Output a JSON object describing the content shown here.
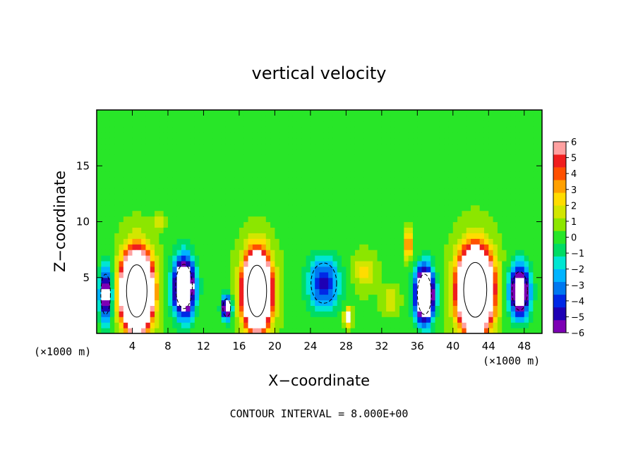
{
  "chart_data": {
    "type": "heatmap",
    "title": "vertical velocity",
    "xlabel": "X−coordinate",
    "ylabel": "Z−coordinate",
    "x_unit_left": "(×1000 m)",
    "x_unit_right": "(×1000 m)",
    "footer": "CONTOUR INTERVAL = 8.000E+00",
    "xlim": [
      0,
      50
    ],
    "ylim": [
      0,
      20
    ],
    "x_ticks": [
      4,
      8,
      12,
      16,
      20,
      24,
      28,
      32,
      36,
      40,
      44,
      48
    ],
    "y_ticks": [
      5,
      10,
      15
    ],
    "colorbar": {
      "min": -6,
      "max": 6,
      "ticks": [
        6,
        5,
        4,
        3,
        2,
        1,
        0,
        -1,
        -2,
        -3,
        -4,
        -5,
        -6
      ],
      "colors": [
        "#7d00b4",
        "#1e00b4",
        "#0028e6",
        "#0078f0",
        "#00b4ff",
        "#00e6d2",
        "#00dc64",
        "#28e628",
        "#8ce600",
        "#d2e600",
        "#ffdc00",
        "#ffa000",
        "#ff5000",
        "#f01e1e",
        "#ffa0a0"
      ],
      "ticks_display": [
        "6",
        "5",
        "4",
        "3",
        "2",
        "1",
        "0",
        "−1",
        "−2",
        "−3",
        "−4",
        "−5",
        "−6"
      ]
    },
    "features": [
      {
        "x": 4.5,
        "z": 3.8,
        "w": 3.2,
        "h": 6.5,
        "v": 28
      },
      {
        "x": 18.0,
        "z": 3.8,
        "w": 3.0,
        "h": 6.4,
        "v": 24
      },
      {
        "x": 42.5,
        "z": 3.9,
        "w": 3.6,
        "h": 6.8,
        "v": 28
      },
      {
        "x": 9.8,
        "z": 4.2,
        "w": 2.6,
        "h": 5.5,
        "v": -12
      },
      {
        "x": 14.6,
        "z": 2.3,
        "w": 1.2,
        "h": 2.2,
        "v": -9
      },
      {
        "x": 25.5,
        "z": 4.5,
        "w": 4.0,
        "h": 5.0,
        "v": -5
      },
      {
        "x": 36.8,
        "z": 3.5,
        "w": 2.2,
        "h": 5.0,
        "v": -14
      },
      {
        "x": 47.5,
        "z": 3.8,
        "w": 2.4,
        "h": 4.8,
        "v": -10
      },
      {
        "x": 1.0,
        "z": 3.5,
        "w": 1.5,
        "h": 5.0,
        "v": -8
      },
      {
        "x": 30.0,
        "z": 5.5,
        "w": 2.5,
        "h": 3.0,
        "v": 2
      },
      {
        "x": 35.0,
        "z": 8.0,
        "w": 0.8,
        "h": 2.5,
        "v": 5
      },
      {
        "x": 28.2,
        "z": 1.5,
        "w": 0.8,
        "h": 1.5,
        "v": 7
      },
      {
        "x": 7.0,
        "z": 10.0,
        "w": 1.2,
        "h": 1.2,
        "v": 2
      },
      {
        "x": 33.0,
        "z": 3.0,
        "w": 1.8,
        "h": 2.0,
        "v": 2
      }
    ],
    "grid": false
  }
}
